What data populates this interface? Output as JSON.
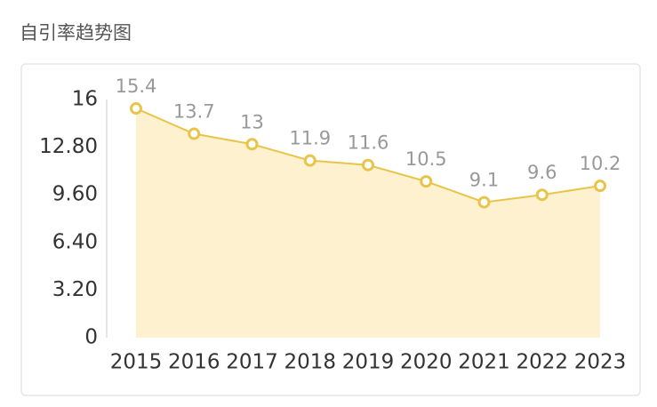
{
  "chart_data": {
    "type": "area-line",
    "title": "自引率趋势图",
    "categories": [
      "2015",
      "2016",
      "2017",
      "2018",
      "2019",
      "2020",
      "2021",
      "2022",
      "2023"
    ],
    "values": [
      15.4,
      13.7,
      13,
      11.9,
      11.6,
      10.5,
      9.1,
      9.6,
      10.2
    ],
    "color": "#e8c54a",
    "fill_color": "#fdf1cf",
    "ylim": [
      0,
      16
    ],
    "yticks": [
      0,
      {
        "value": 3.2,
        "label": "3.20"
      },
      {
        "value": 6.4,
        "label": "6.40"
      },
      {
        "value": 9.6,
        "label": "9.60"
      },
      {
        "value": 12.8,
        "label": "12.80"
      },
      16
    ]
  }
}
